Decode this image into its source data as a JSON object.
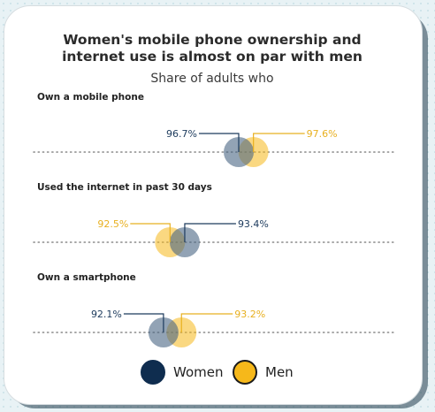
{
  "colors": {
    "women": "#0f2d4f",
    "men": "#f6b81a",
    "women_label": "#1c3a5c",
    "men_label": "#e8b020",
    "dotted": "#8a8a8a"
  },
  "legend": {
    "women_label": "Women",
    "men_label": "Men"
  },
  "chart_data": {
    "type": "dot-plot",
    "title_line1": "Women's mobile phone ownership and",
    "title_line2": "internet use is almost on par with men",
    "subtitle": "Share of adults who",
    "unit": "%",
    "series": [
      {
        "name": "Women",
        "values": [
          96.7,
          93.4,
          92.1
        ]
      },
      {
        "name": "Men",
        "values": [
          97.6,
          92.5,
          93.2
        ]
      }
    ],
    "categories": [
      "Own a mobile phone",
      "Used the internet in past 30 days",
      "Own a smartphone"
    ],
    "value_labels": [
      {
        "women": "96.7%",
        "men": "97.6%"
      },
      {
        "women": "93.4%",
        "men": "92.5%"
      },
      {
        "women": "92.1%",
        "men": "93.2%"
      }
    ],
    "legend_placement": "bottom",
    "grid": false
  }
}
